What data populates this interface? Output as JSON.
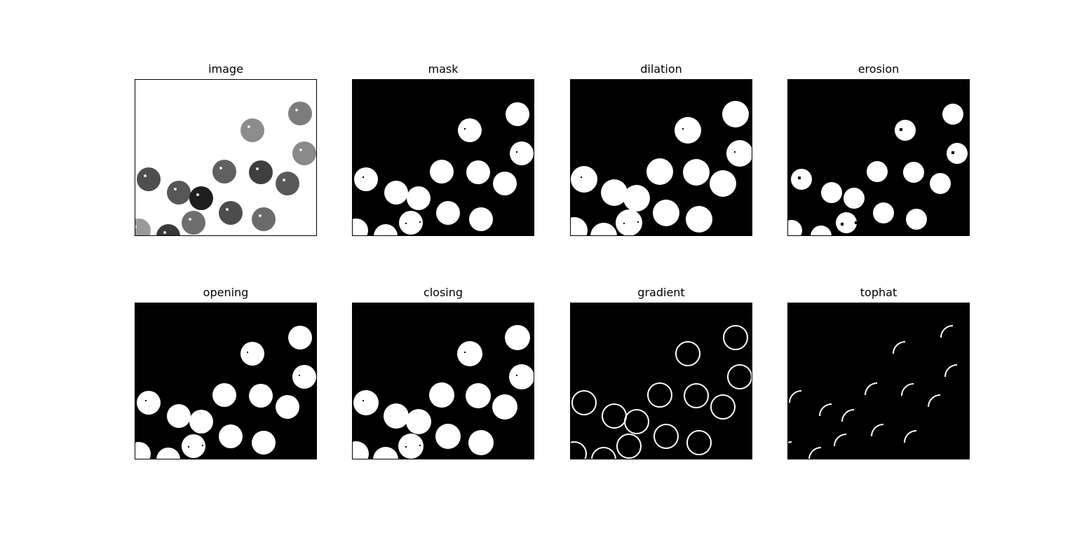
{
  "panels": [
    {
      "title": "image",
      "style": "photo"
    },
    {
      "title": "mask",
      "style": "mask"
    },
    {
      "title": "dilation",
      "style": "dilation"
    },
    {
      "title": "erosion",
      "style": "erosion"
    },
    {
      "title": "opening",
      "style": "opening"
    },
    {
      "title": "closing",
      "style": "closing"
    },
    {
      "title": "gradient",
      "style": "gradient"
    },
    {
      "title": "tophat",
      "style": "tophat"
    }
  ],
  "colors": {
    "background": "#ffffff",
    "mask_bg": "#000000",
    "foreground": "#ffffff",
    "frame": "#000000"
  }
}
